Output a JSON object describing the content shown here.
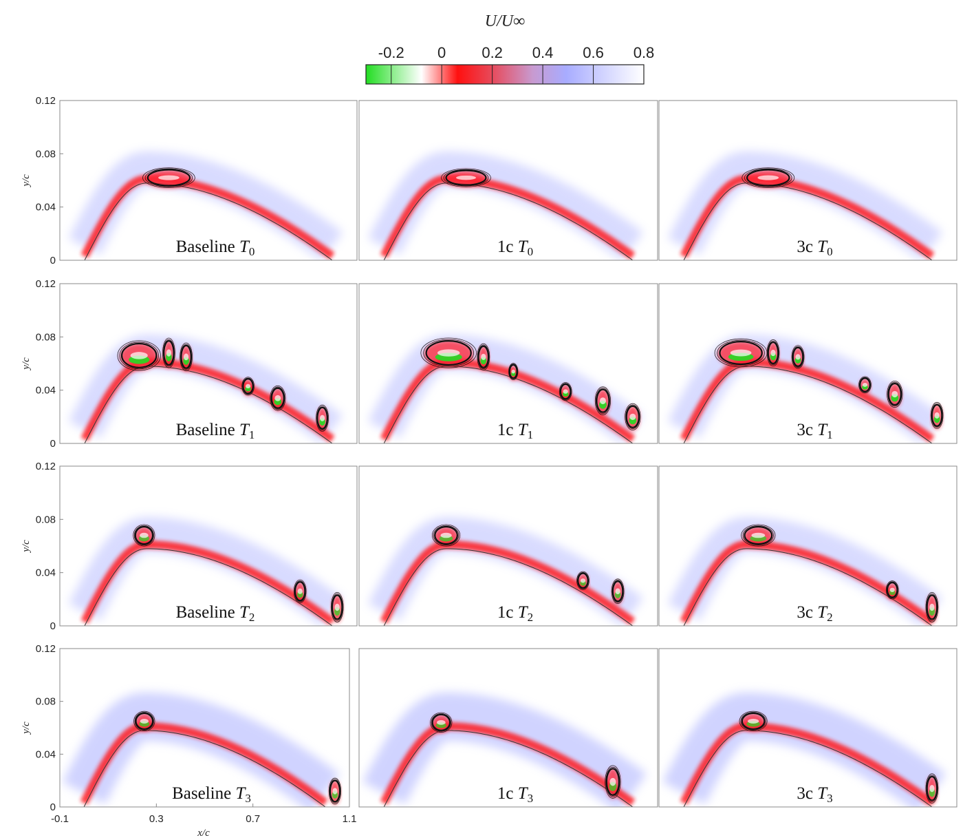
{
  "chart_data": {
    "type": "heatmap",
    "colorbar": {
      "title": "U/U∞",
      "ticks": [
        "-0.2",
        "0",
        "0.2",
        "0.4",
        "0.6",
        "0.8"
      ],
      "range": [
        -0.3,
        0.8
      ],
      "colors": [
        "#22dd22",
        "#ffffff",
        "#ff1010",
        "#e84858",
        "#c89ad0",
        "#a8acff",
        "#ffffff"
      ]
    },
    "xlabel": "x/c",
    "ylabel": "y/c",
    "xlim": [
      -0.1,
      1.1
    ],
    "ylim": [
      0,
      0.12
    ],
    "xticks": [
      "-0.1",
      "0.3",
      "0.7",
      "1.1"
    ],
    "yticks": [
      "0",
      "0.04",
      "0.08",
      "0.12"
    ],
    "grid": false,
    "panels": [
      {
        "row": 0,
        "col": 0,
        "case": "Baseline",
        "time": "T",
        "sub": "0",
        "vortices": [
          {
            "x": 0.34,
            "y": 0.062,
            "w": 0.17,
            "h": 0.012
          }
        ]
      },
      {
        "row": 0,
        "col": 1,
        "case": "1c",
        "time": "T",
        "sub": "0",
        "vortices": [
          {
            "x": 0.33,
            "y": 0.062,
            "w": 0.16,
            "h": 0.011
          }
        ]
      },
      {
        "row": 0,
        "col": 2,
        "case": "3c",
        "time": "T",
        "sub": "0",
        "vortices": [
          {
            "x": 0.34,
            "y": 0.062,
            "w": 0.17,
            "h": 0.012
          }
        ]
      },
      {
        "row": 1,
        "col": 0,
        "case": "Baseline",
        "time": "T",
        "sub": "1",
        "vortices": [
          {
            "x": 0.22,
            "y": 0.066,
            "w": 0.14,
            "h": 0.018
          },
          {
            "x": 0.34,
            "y": 0.068,
            "w": 0.04,
            "h": 0.018
          },
          {
            "x": 0.41,
            "y": 0.065,
            "w": 0.04,
            "h": 0.017
          },
          {
            "x": 0.66,
            "y": 0.043,
            "w": 0.04,
            "h": 0.011
          },
          {
            "x": 0.78,
            "y": 0.034,
            "w": 0.05,
            "h": 0.015
          },
          {
            "x": 0.96,
            "y": 0.019,
            "w": 0.04,
            "h": 0.016
          }
        ]
      },
      {
        "row": 1,
        "col": 1,
        "case": "1c",
        "time": "T",
        "sub": "1",
        "vortices": [
          {
            "x": 0.26,
            "y": 0.068,
            "w": 0.18,
            "h": 0.018
          },
          {
            "x": 0.4,
            "y": 0.065,
            "w": 0.04,
            "h": 0.016
          },
          {
            "x": 0.52,
            "y": 0.054,
            "w": 0.03,
            "h": 0.01
          },
          {
            "x": 0.73,
            "y": 0.039,
            "w": 0.04,
            "h": 0.011
          },
          {
            "x": 0.88,
            "y": 0.032,
            "w": 0.05,
            "h": 0.017
          },
          {
            "x": 1.0,
            "y": 0.02,
            "w": 0.05,
            "h": 0.016
          }
        ]
      },
      {
        "row": 1,
        "col": 2,
        "case": "3c",
        "time": "T",
        "sub": "1",
        "vortices": [
          {
            "x": 0.23,
            "y": 0.068,
            "w": 0.17,
            "h": 0.017
          },
          {
            "x": 0.36,
            "y": 0.068,
            "w": 0.04,
            "h": 0.016
          },
          {
            "x": 0.46,
            "y": 0.065,
            "w": 0.04,
            "h": 0.014
          },
          {
            "x": 0.73,
            "y": 0.044,
            "w": 0.04,
            "h": 0.01
          },
          {
            "x": 0.85,
            "y": 0.037,
            "w": 0.05,
            "h": 0.016
          },
          {
            "x": 1.02,
            "y": 0.021,
            "w": 0.04,
            "h": 0.016
          }
        ]
      },
      {
        "row": 2,
        "col": 0,
        "case": "Baseline",
        "time": "T",
        "sub": "2",
        "vortices": [
          {
            "x": 0.24,
            "y": 0.068,
            "w": 0.07,
            "h": 0.013
          },
          {
            "x": 0.87,
            "y": 0.026,
            "w": 0.04,
            "h": 0.014
          },
          {
            "x": 1.02,
            "y": 0.014,
            "w": 0.04,
            "h": 0.018
          }
        ]
      },
      {
        "row": 2,
        "col": 1,
        "case": "1c",
        "time": "T",
        "sub": "2",
        "vortices": [
          {
            "x": 0.25,
            "y": 0.068,
            "w": 0.09,
            "h": 0.013
          },
          {
            "x": 0.8,
            "y": 0.034,
            "w": 0.04,
            "h": 0.011
          },
          {
            "x": 0.94,
            "y": 0.026,
            "w": 0.04,
            "h": 0.015
          }
        ]
      },
      {
        "row": 2,
        "col": 2,
        "case": "3c",
        "time": "T",
        "sub": "2",
        "vortices": [
          {
            "x": 0.3,
            "y": 0.068,
            "w": 0.11,
            "h": 0.013
          },
          {
            "x": 0.84,
            "y": 0.027,
            "w": 0.04,
            "h": 0.011
          },
          {
            "x": 1.0,
            "y": 0.014,
            "w": 0.04,
            "h": 0.018
          }
        ]
      },
      {
        "row": 3,
        "col": 0,
        "case": "Baseline",
        "time": "T",
        "sub": "3",
        "vortices": [
          {
            "x": 0.25,
            "y": 0.065,
            "w": 0.07,
            "h": 0.012
          },
          {
            "x": 1.04,
            "y": 0.012,
            "w": 0.04,
            "h": 0.016
          }
        ]
      },
      {
        "row": 3,
        "col": 1,
        "case": "1c",
        "time": "T",
        "sub": "3",
        "vortices": [
          {
            "x": 0.23,
            "y": 0.064,
            "w": 0.07,
            "h": 0.012
          },
          {
            "x": 0.92,
            "y": 0.019,
            "w": 0.05,
            "h": 0.02
          }
        ]
      },
      {
        "row": 3,
        "col": 2,
        "case": "3c",
        "time": "T",
        "sub": "3",
        "vortices": [
          {
            "x": 0.28,
            "y": 0.065,
            "w": 0.09,
            "h": 0.012
          },
          {
            "x": 1.0,
            "y": 0.014,
            "w": 0.04,
            "h": 0.018
          }
        ]
      }
    ]
  }
}
